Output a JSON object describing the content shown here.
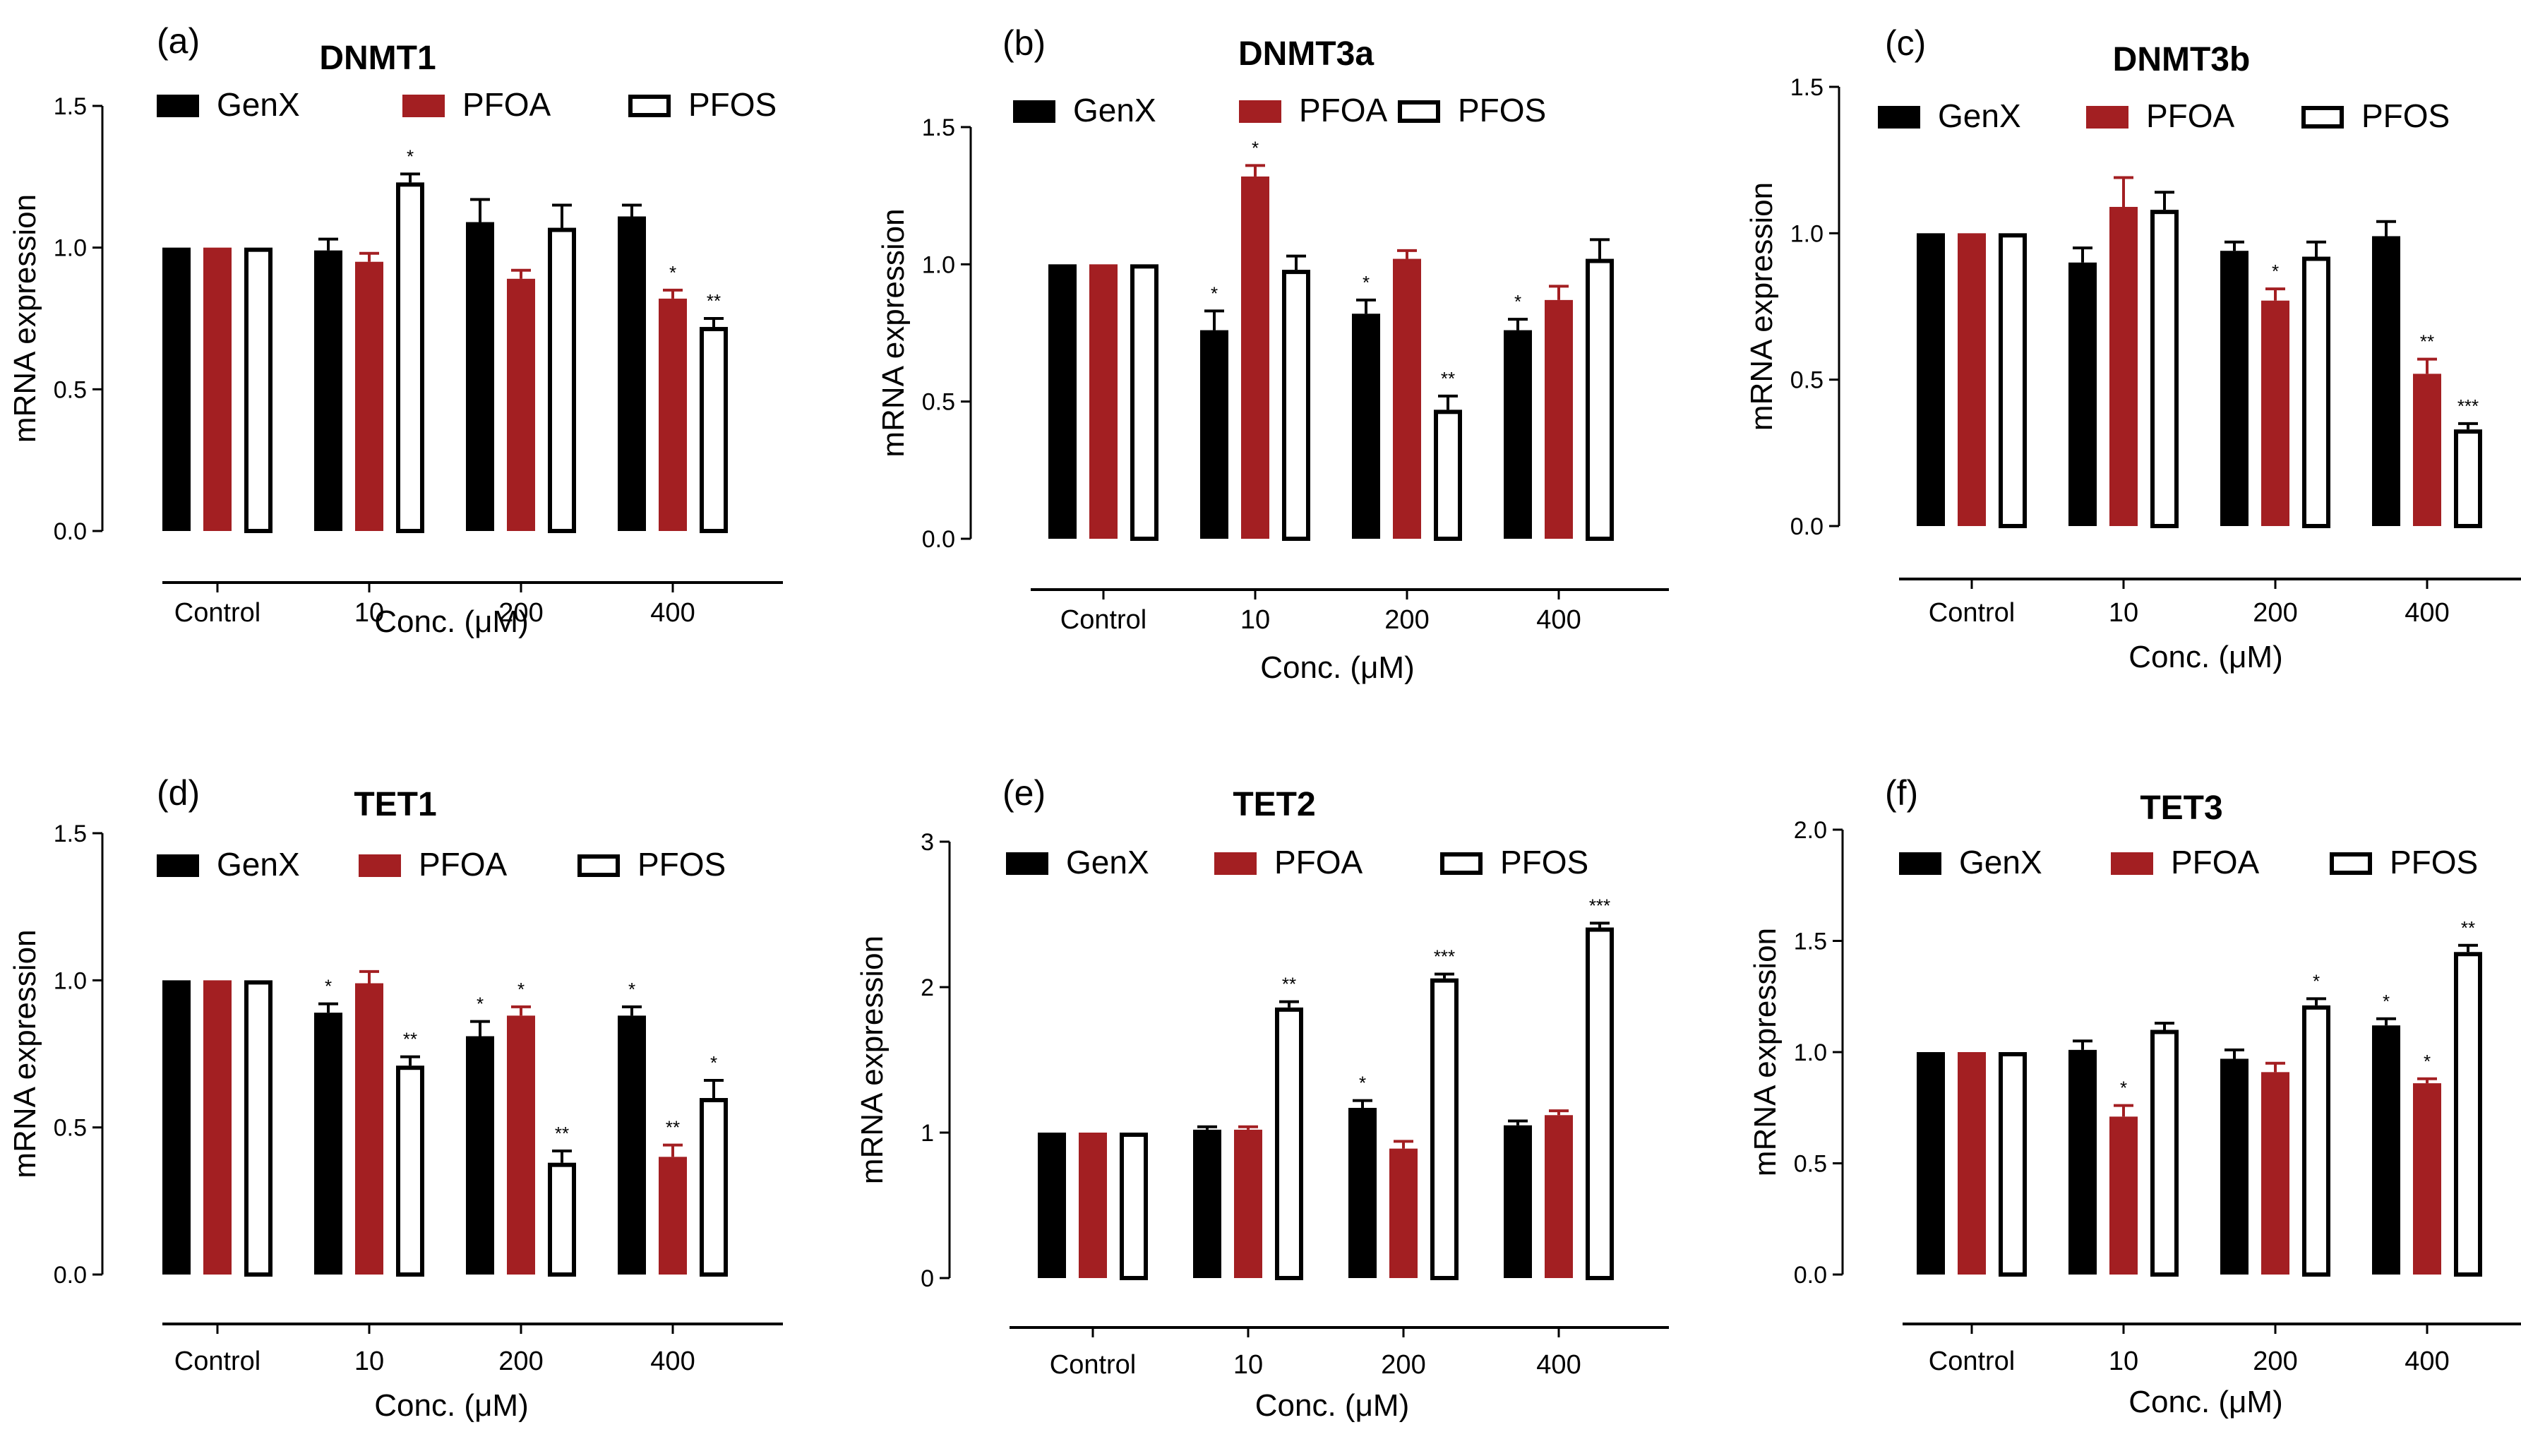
{
  "colors": {
    "GenX": "#000000",
    "PFOA": "#a31f22",
    "PFOS": "#ffffff",
    "axis": "#000000"
  },
  "series_names": [
    "GenX",
    "PFOA",
    "PFOS"
  ],
  "chart_data": [
    {
      "type": "bar",
      "panel": "(a)",
      "title": "DNMT1",
      "xlabel": "Conc. (μM)",
      "ylabel": "mRNA expression",
      "categories": [
        "Control",
        "10",
        "200",
        "400"
      ],
      "ylim": [
        0,
        1.5
      ],
      "yticks": [
        "0.0",
        "0.5",
        "1.0",
        "1.5"
      ],
      "ytick_values": [
        0,
        0.5,
        1.0,
        1.5
      ],
      "series": [
        {
          "name": "GenX",
          "values": [
            1.0,
            0.99,
            1.09,
            1.11
          ],
          "errors": [
            0.0,
            0.04,
            0.08,
            0.04
          ],
          "sig": [
            "",
            "",
            "",
            ""
          ]
        },
        {
          "name": "PFOA",
          "values": [
            1.0,
            0.95,
            0.89,
            0.82
          ],
          "errors": [
            0.0,
            0.03,
            0.03,
            0.03
          ],
          "sig": [
            "",
            "",
            "",
            "*"
          ]
        },
        {
          "name": "PFOS",
          "values": [
            1.0,
            1.23,
            1.07,
            0.72
          ],
          "errors": [
            0.0,
            0.03,
            0.08,
            0.03
          ],
          "sig": [
            "",
            "*",
            "",
            "**"
          ]
        }
      ]
    },
    {
      "type": "bar",
      "panel": "(b)",
      "title": "DNMT3a",
      "xlabel": "Conc. (μM)",
      "ylabel": "mRNA expression",
      "categories": [
        "Control",
        "10",
        "200",
        "400"
      ],
      "ylim": [
        0,
        1.5
      ],
      "yticks": [
        "0.0",
        "0.5",
        "1.0",
        "1.5"
      ],
      "ytick_values": [
        0,
        0.5,
        1.0,
        1.5
      ],
      "series": [
        {
          "name": "GenX",
          "values": [
            1.0,
            0.76,
            0.82,
            0.76
          ],
          "errors": [
            0.0,
            0.07,
            0.05,
            0.04
          ],
          "sig": [
            "",
            "*",
            "*",
            "*"
          ]
        },
        {
          "name": "PFOA",
          "values": [
            1.0,
            1.32,
            1.02,
            0.87
          ],
          "errors": [
            0.0,
            0.04,
            0.03,
            0.05
          ],
          "sig": [
            "",
            "*",
            "",
            ""
          ]
        },
        {
          "name": "PFOS",
          "values": [
            1.0,
            0.98,
            0.47,
            1.02
          ],
          "errors": [
            0.0,
            0.05,
            0.05,
            0.07
          ],
          "sig": [
            "",
            "",
            "**",
            ""
          ]
        }
      ]
    },
    {
      "type": "bar",
      "panel": "(c)",
      "title": "DNMT3b",
      "xlabel": "Conc. (μM)",
      "ylabel": "mRNA expression",
      "categories": [
        "Control",
        "10",
        "200",
        "400"
      ],
      "ylim": [
        0,
        1.5
      ],
      "yticks": [
        "0.0",
        "0.5",
        "1.0",
        "1.5"
      ],
      "ytick_values": [
        0,
        0.5,
        1.0,
        1.5
      ],
      "series": [
        {
          "name": "GenX",
          "values": [
            1.0,
            0.9,
            0.94,
            0.99
          ],
          "errors": [
            0.0,
            0.05,
            0.03,
            0.05
          ],
          "sig": [
            "",
            "",
            "",
            ""
          ]
        },
        {
          "name": "PFOA",
          "values": [
            1.0,
            1.09,
            0.77,
            0.52
          ],
          "errors": [
            0.0,
            0.1,
            0.04,
            0.05
          ],
          "sig": [
            "",
            "",
            "*",
            "**"
          ]
        },
        {
          "name": "PFOS",
          "values": [
            1.0,
            1.08,
            0.92,
            0.33
          ],
          "errors": [
            0.0,
            0.06,
            0.05,
            0.02
          ],
          "sig": [
            "",
            "",
            "",
            "***"
          ]
        }
      ]
    },
    {
      "type": "bar",
      "panel": "(d)",
      "title": "TET1",
      "xlabel": "Conc. (μM)",
      "ylabel": "mRNA expression",
      "categories": [
        "Control",
        "10",
        "200",
        "400"
      ],
      "ylim": [
        0,
        1.5
      ],
      "yticks": [
        "0.0",
        "0.5",
        "1.0",
        "1.5"
      ],
      "ytick_values": [
        0,
        0.5,
        1.0,
        1.5
      ],
      "series": [
        {
          "name": "GenX",
          "values": [
            1.0,
            0.89,
            0.81,
            0.88
          ],
          "errors": [
            0.0,
            0.03,
            0.05,
            0.03
          ],
          "sig": [
            "",
            "*",
            "*",
            "*"
          ]
        },
        {
          "name": "PFOA",
          "values": [
            1.0,
            0.99,
            0.88,
            0.4
          ],
          "errors": [
            0.0,
            0.04,
            0.03,
            0.04
          ],
          "sig": [
            "",
            "",
            "*",
            "**"
          ]
        },
        {
          "name": "PFOS",
          "values": [
            1.0,
            0.71,
            0.38,
            0.6
          ],
          "errors": [
            0.0,
            0.03,
            0.04,
            0.06
          ],
          "sig": [
            "",
            "**",
            "**",
            "*"
          ]
        }
      ]
    },
    {
      "type": "bar",
      "panel": "(e)",
      "title": "TET2",
      "xlabel": "Conc. (μM)",
      "ylabel": "mRNA expression",
      "categories": [
        "Control",
        "10",
        "200",
        "400"
      ],
      "ylim": [
        0,
        3
      ],
      "yticks": [
        "0",
        "1",
        "2",
        "3"
      ],
      "ytick_values": [
        0,
        1,
        2,
        3
      ],
      "series": [
        {
          "name": "GenX",
          "values": [
            1.0,
            1.02,
            1.17,
            1.05
          ],
          "errors": [
            0.0,
            0.02,
            0.05,
            0.03
          ],
          "sig": [
            "",
            "",
            "*",
            ""
          ]
        },
        {
          "name": "PFOA",
          "values": [
            1.0,
            1.02,
            0.89,
            1.12
          ],
          "errors": [
            0.0,
            0.02,
            0.05,
            0.03
          ],
          "sig": [
            "",
            "",
            "",
            ""
          ]
        },
        {
          "name": "PFOS",
          "values": [
            1.0,
            1.86,
            2.06,
            2.41
          ],
          "errors": [
            0.0,
            0.04,
            0.03,
            0.03
          ],
          "sig": [
            "",
            "**",
            "***",
            "***"
          ]
        }
      ]
    },
    {
      "type": "bar",
      "panel": "(f)",
      "title": "TET3",
      "xlabel": "Conc. (μM)",
      "ylabel": "mRNA expression",
      "categories": [
        "Control",
        "10",
        "200",
        "400"
      ],
      "ylim": [
        0,
        2.0
      ],
      "yticks": [
        "0.0",
        "0.5",
        "1.0",
        "1.5",
        "2.0"
      ],
      "ytick_values": [
        0,
        0.5,
        1.0,
        1.5,
        2.0
      ],
      "series": [
        {
          "name": "GenX",
          "values": [
            1.0,
            1.01,
            0.97,
            1.12
          ],
          "errors": [
            0.0,
            0.04,
            0.04,
            0.03
          ],
          "sig": [
            "",
            "",
            "",
            "*"
          ]
        },
        {
          "name": "PFOA",
          "values": [
            1.0,
            0.71,
            0.91,
            0.86
          ],
          "errors": [
            0.0,
            0.05,
            0.04,
            0.02
          ],
          "sig": [
            "",
            "*",
            "",
            "*"
          ]
        },
        {
          "name": "PFOS",
          "values": [
            1.0,
            1.1,
            1.21,
            1.45
          ],
          "errors": [
            0.0,
            0.03,
            0.03,
            0.03
          ],
          "sig": [
            "",
            "",
            "*",
            "**"
          ]
        }
      ]
    }
  ]
}
